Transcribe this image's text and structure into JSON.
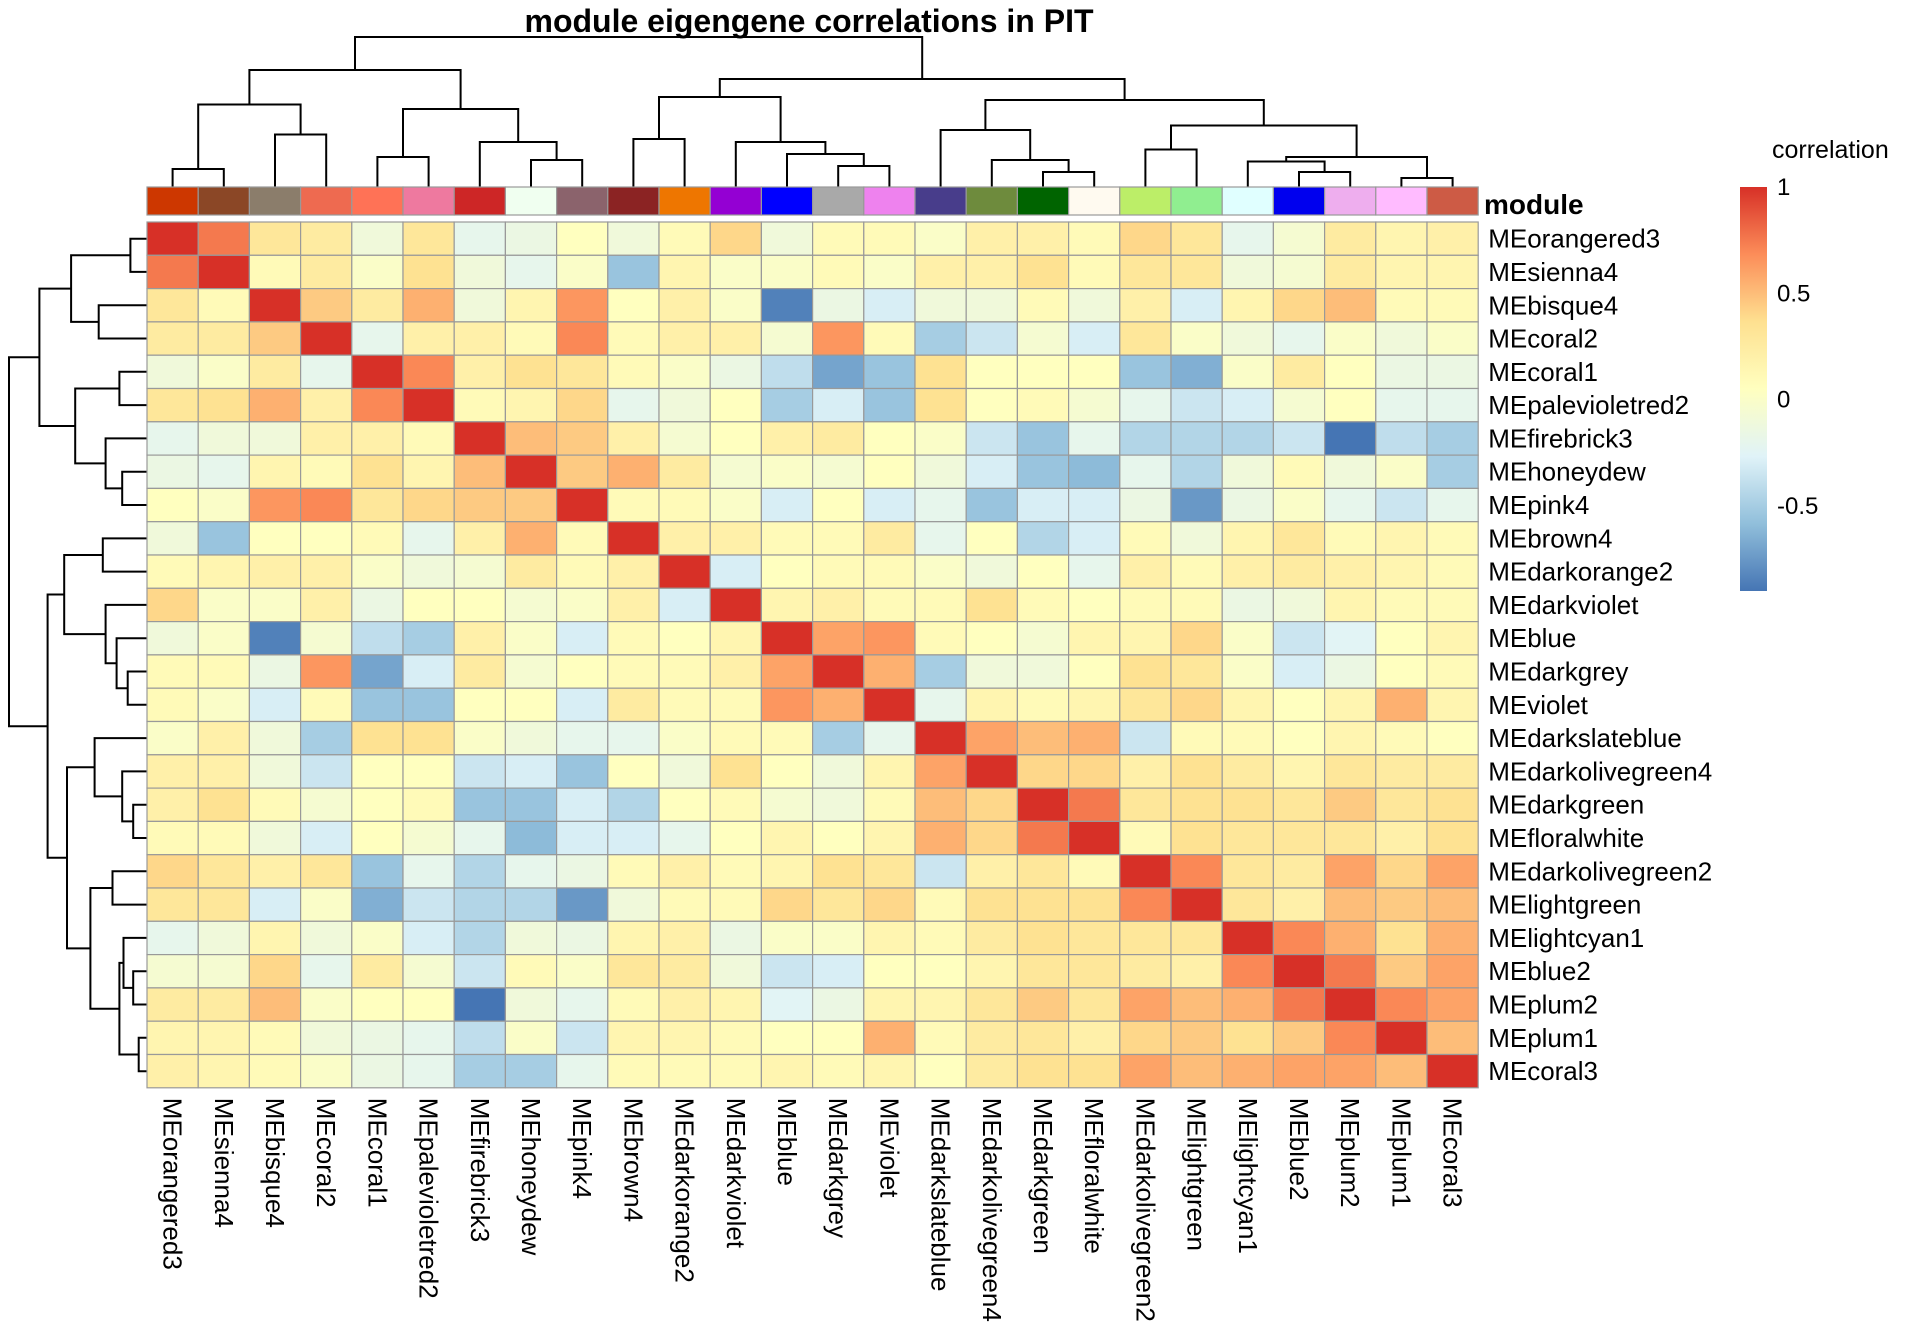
{
  "chart_data": {
    "type": "heatmap",
    "title": "module eigengene correlations in PIT",
    "annotation_label": "module",
    "legend": {
      "title": "correlation",
      "ticks": [
        "1",
        "0.5",
        "0",
        "-0.5"
      ],
      "range": [
        -0.9,
        1
      ],
      "colors": [
        "#4575b4",
        "#91bfdb",
        "#e0f3f8",
        "#ffffbf",
        "#fee090",
        "#fc8d59",
        "#d73027"
      ],
      "position": "right"
    },
    "modules": [
      "MEorangered3",
      "MEsienna4",
      "MEbisque4",
      "MEcoral2",
      "MEcoral1",
      "MEpalevioletred2",
      "MEfirebrick3",
      "MEhoneydew",
      "MEpink4",
      "MEbrown4",
      "MEdarkorange2",
      "MEdarkviolet",
      "MEblue",
      "MEdarkgrey",
      "MEviolet",
      "MEdarkslateblue",
      "MEdarkolivegreen4",
      "MEdarkgreen",
      "MEfloralwhite",
      "MEdarkolivegreen2",
      "MElightgreen",
      "MElightcyan1",
      "MEblue2",
      "MEplum2",
      "MEplum1",
      "MEcoral3"
    ],
    "module_colors": [
      "#CD3700",
      "#8B4726",
      "#8B7D6B",
      "#EE6A50",
      "#FF7256",
      "#EE799F",
      "#CD2626",
      "#F0FFF0",
      "#8B636C",
      "#8B2323",
      "#EE7600",
      "#9400D3",
      "#0000FF",
      "#A9A9A9",
      "#EE82EE",
      "#483D8B",
      "#6E8B3D",
      "#006400",
      "#FFFAF0",
      "#BCEE68",
      "#90EE90",
      "#E0FFFF",
      "#0000EE",
      "#EEAEEE",
      "#FFBBFF",
      "#CD5B45"
    ],
    "matrix": [
      [
        1,
        0.75,
        0.3,
        0.25,
        -0.1,
        0.3,
        -0.2,
        -0.15,
        0.05,
        -0.1,
        0.1,
        0.4,
        -0.1,
        0.1,
        0.1,
        0,
        0.2,
        0.2,
        0.1,
        0.4,
        0.3,
        -0.2,
        -0.05,
        0.25,
        0.15,
        0.2
      ],
      [
        0.75,
        1,
        0.1,
        0.25,
        0,
        0.35,
        -0.1,
        -0.2,
        0,
        -0.55,
        0.15,
        0,
        0,
        0.1,
        0,
        0.2,
        0.2,
        0.35,
        0.1,
        0.3,
        0.3,
        -0.1,
        -0.05,
        0.25,
        0.15,
        0.15
      ],
      [
        0.3,
        0.1,
        1,
        0.45,
        0.25,
        0.55,
        -0.1,
        0.15,
        0.65,
        0.05,
        0.2,
        0,
        -0.85,
        -0.15,
        -0.3,
        -0.1,
        -0.1,
        0.1,
        -0.1,
        0.2,
        -0.3,
        0.15,
        0.4,
        0.5,
        0.1,
        0.1
      ],
      [
        0.25,
        0.25,
        0.45,
        1,
        -0.2,
        0.2,
        0.2,
        0.1,
        0.7,
        0.1,
        0.2,
        0.2,
        -0.05,
        0.65,
        0.1,
        -0.5,
        -0.35,
        -0.05,
        -0.3,
        0.3,
        0,
        -0.1,
        -0.2,
        0,
        -0.1,
        0
      ],
      [
        -0.1,
        0,
        0.25,
        -0.2,
        1,
        0.7,
        0.2,
        0.35,
        0.3,
        0.1,
        0,
        -0.15,
        -0.4,
        -0.7,
        -0.55,
        0.35,
        0.05,
        0.05,
        0.05,
        -0.55,
        -0.65,
        0,
        0.25,
        0.05,
        -0.15,
        -0.15
      ],
      [
        0.3,
        0.35,
        0.55,
        0.2,
        0.7,
        1,
        0.1,
        0.15,
        0.4,
        -0.2,
        -0.1,
        0.05,
        -0.5,
        -0.3,
        -0.55,
        0.35,
        0.05,
        0.1,
        -0.05,
        -0.2,
        -0.35,
        -0.3,
        -0.05,
        0.05,
        -0.2,
        -0.2
      ],
      [
        -0.2,
        -0.1,
        -0.1,
        0.2,
        0.2,
        0.1,
        1,
        0.5,
        0.45,
        0.2,
        -0.05,
        0.05,
        0.2,
        0.25,
        0.05,
        0,
        -0.35,
        -0.55,
        -0.2,
        -0.45,
        -0.45,
        -0.45,
        -0.35,
        -0.9,
        -0.4,
        -0.5
      ],
      [
        -0.15,
        -0.2,
        0.15,
        0.1,
        0.35,
        0.15,
        0.5,
        1,
        0.45,
        0.55,
        0.25,
        -0.05,
        0,
        -0.05,
        0.05,
        -0.1,
        -0.3,
        -0.55,
        -0.6,
        -0.2,
        -0.45,
        -0.1,
        0.1,
        -0.1,
        0,
        -0.5
      ],
      [
        0.05,
        0,
        0.65,
        0.7,
        0.3,
        0.4,
        0.45,
        0.45,
        1,
        0.1,
        0.1,
        0,
        -0.3,
        0.05,
        -0.3,
        -0.2,
        -0.55,
        -0.3,
        -0.3,
        -0.15,
        -0.75,
        -0.15,
        0,
        -0.2,
        -0.35,
        -0.2
      ],
      [
        -0.1,
        -0.55,
        0.05,
        0.05,
        0.1,
        -0.2,
        0.2,
        0.55,
        0.1,
        1,
        0.2,
        0.2,
        0.1,
        0.1,
        0.25,
        -0.2,
        0.05,
        -0.45,
        -0.3,
        0.1,
        -0.1,
        0.15,
        0.3,
        0.1,
        0.15,
        0.1
      ],
      [
        0.1,
        0.15,
        0.2,
        0.2,
        0,
        -0.1,
        -0.05,
        0.25,
        0.1,
        0.2,
        1,
        -0.3,
        0.05,
        0.1,
        0.1,
        0,
        -0.1,
        0.05,
        -0.2,
        0.2,
        0.1,
        0.2,
        0.25,
        0.2,
        0.15,
        0.1
      ],
      [
        0.4,
        0,
        0,
        0.2,
        -0.15,
        0.05,
        0.05,
        -0.05,
        0,
        0.2,
        -0.3,
        1,
        0.15,
        0.2,
        0.1,
        0.1,
        0.35,
        0.1,
        0.05,
        0.1,
        0.1,
        -0.15,
        -0.1,
        0.15,
        0.1,
        0.1
      ],
      [
        -0.1,
        0,
        -0.85,
        -0.05,
        -0.4,
        -0.5,
        0.2,
        0,
        -0.3,
        0.1,
        0.05,
        0.15,
        1,
        0.6,
        0.65,
        0.1,
        0.05,
        -0.05,
        0.15,
        0.15,
        0.4,
        0,
        -0.35,
        -0.25,
        0.05,
        0.15
      ],
      [
        0.1,
        0.1,
        -0.15,
        0.65,
        -0.7,
        -0.3,
        0.25,
        -0.05,
        0.05,
        0.1,
        0.1,
        0.2,
        0.6,
        1,
        0.55,
        -0.5,
        -0.1,
        -0.1,
        0.05,
        0.35,
        0.3,
        0,
        -0.3,
        -0.15,
        0.05,
        0.1
      ],
      [
        0.1,
        0,
        -0.3,
        0.1,
        -0.55,
        -0.55,
        0.05,
        0.05,
        -0.3,
        0.25,
        0.1,
        0.1,
        0.65,
        0.55,
        1,
        -0.2,
        0.15,
        0.1,
        0.15,
        0.3,
        0.4,
        0.15,
        0.05,
        0.15,
        0.55,
        0.15
      ],
      [
        0,
        0.2,
        -0.1,
        -0.5,
        0.35,
        0.35,
        0,
        -0.1,
        -0.2,
        -0.2,
        0,
        0.1,
        0.1,
        -0.5,
        -0.2,
        1,
        0.6,
        0.5,
        0.55,
        -0.35,
        0.1,
        0.1,
        0.05,
        0.15,
        0.1,
        0.05
      ],
      [
        0.2,
        0.2,
        -0.1,
        -0.35,
        0.05,
        0.05,
        -0.35,
        -0.3,
        -0.55,
        0.05,
        -0.1,
        0.35,
        0.05,
        -0.1,
        0.15,
        0.6,
        1,
        0.4,
        0.4,
        0.2,
        0.35,
        0.25,
        0.15,
        0.3,
        0.25,
        0.25
      ],
      [
        0.2,
        0.35,
        0.1,
        -0.05,
        0.05,
        0.1,
        -0.55,
        -0.55,
        -0.3,
        -0.45,
        0.05,
        0.1,
        -0.05,
        -0.1,
        0.1,
        0.5,
        0.4,
        1,
        0.75,
        0.3,
        0.35,
        0.35,
        0.3,
        0.45,
        0.3,
        0.35
      ],
      [
        0.1,
        0.1,
        -0.1,
        -0.3,
        0.05,
        -0.05,
        -0.2,
        -0.6,
        -0.3,
        -0.3,
        -0.2,
        0.05,
        0.15,
        0.05,
        0.15,
        0.55,
        0.4,
        0.75,
        1,
        0.1,
        0.35,
        0.3,
        0.3,
        0.3,
        0.2,
        0.35
      ],
      [
        0.4,
        0.3,
        0.2,
        0.3,
        -0.55,
        -0.2,
        -0.45,
        -0.2,
        -0.15,
        0.1,
        0.2,
        0.1,
        0.15,
        0.35,
        0.3,
        -0.35,
        0.2,
        0.3,
        0.1,
        1,
        0.7,
        0.3,
        0.25,
        0.6,
        0.4,
        0.6
      ],
      [
        0.3,
        0.3,
        -0.3,
        0,
        -0.65,
        -0.35,
        -0.45,
        -0.45,
        -0.75,
        -0.1,
        0.1,
        0.1,
        0.4,
        0.3,
        0.4,
        0.1,
        0.35,
        0.35,
        0.35,
        0.7,
        1,
        0.3,
        0.2,
        0.5,
        0.45,
        0.5
      ],
      [
        -0.2,
        -0.1,
        0.15,
        -0.1,
        0,
        -0.3,
        -0.45,
        -0.1,
        -0.15,
        0.15,
        0.2,
        -0.15,
        0,
        0,
        0.15,
        0.1,
        0.25,
        0.35,
        0.3,
        0.3,
        0.3,
        1,
        0.7,
        0.55,
        0.35,
        0.55
      ],
      [
        -0.05,
        -0.05,
        0.4,
        -0.2,
        0.25,
        -0.05,
        -0.35,
        0.1,
        0,
        0.3,
        0.25,
        -0.1,
        -0.35,
        -0.3,
        0.05,
        0.05,
        0.15,
        0.3,
        0.3,
        0.25,
        0.2,
        0.7,
        1,
        0.75,
        0.45,
        0.6
      ],
      [
        0.25,
        0.25,
        0.5,
        0,
        0.05,
        0.05,
        -0.9,
        -0.1,
        -0.2,
        0.1,
        0.2,
        0.15,
        -0.25,
        -0.15,
        0.15,
        0.15,
        0.3,
        0.45,
        0.3,
        0.6,
        0.5,
        0.55,
        0.75,
        1,
        0.7,
        0.6
      ],
      [
        0.15,
        0.15,
        0.1,
        -0.1,
        -0.15,
        -0.2,
        -0.4,
        0,
        -0.35,
        0.15,
        0.15,
        0.1,
        0.05,
        0.05,
        0.55,
        0.1,
        0.25,
        0.3,
        0.2,
        0.4,
        0.45,
        0.35,
        0.45,
        0.7,
        1,
        0.5
      ],
      [
        0.2,
        0.15,
        0.1,
        0,
        -0.15,
        -0.2,
        -0.5,
        -0.5,
        -0.2,
        0.1,
        0.1,
        0.1,
        0.15,
        0.1,
        0.15,
        0.05,
        0.25,
        0.35,
        0.35,
        0.6,
        0.5,
        0.55,
        0.6,
        0.6,
        0.5,
        1
      ]
    ]
  }
}
